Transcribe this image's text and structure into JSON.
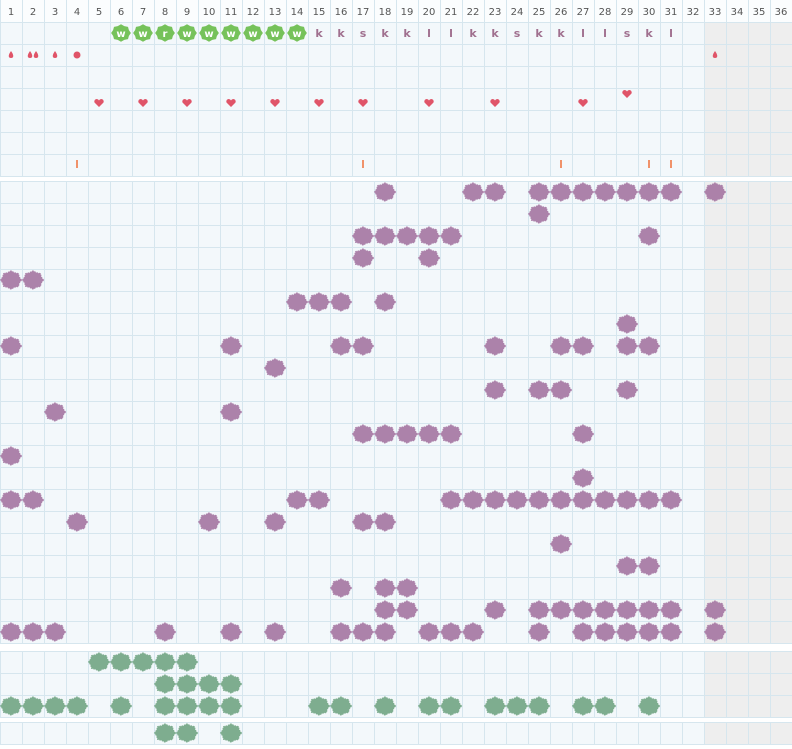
{
  "columns": [
    1,
    2,
    3,
    4,
    5,
    6,
    7,
    8,
    9,
    10,
    11,
    12,
    13,
    14,
    15,
    16,
    17,
    18,
    19,
    20,
    21,
    22,
    23,
    24,
    25,
    26,
    27,
    28,
    29,
    30,
    31,
    32,
    33,
    34,
    35,
    36
  ],
  "codes": [
    null,
    null,
    null,
    null,
    null,
    "w",
    "w",
    "r",
    "w",
    "w",
    "w",
    "w",
    "w",
    "w",
    "k",
    "k",
    "s",
    "k",
    "k",
    "l",
    "l",
    "k",
    "k",
    "s",
    "k",
    "k",
    "l",
    "l",
    "s",
    "k",
    "l",
    null,
    null,
    null,
    null,
    null
  ]
}
